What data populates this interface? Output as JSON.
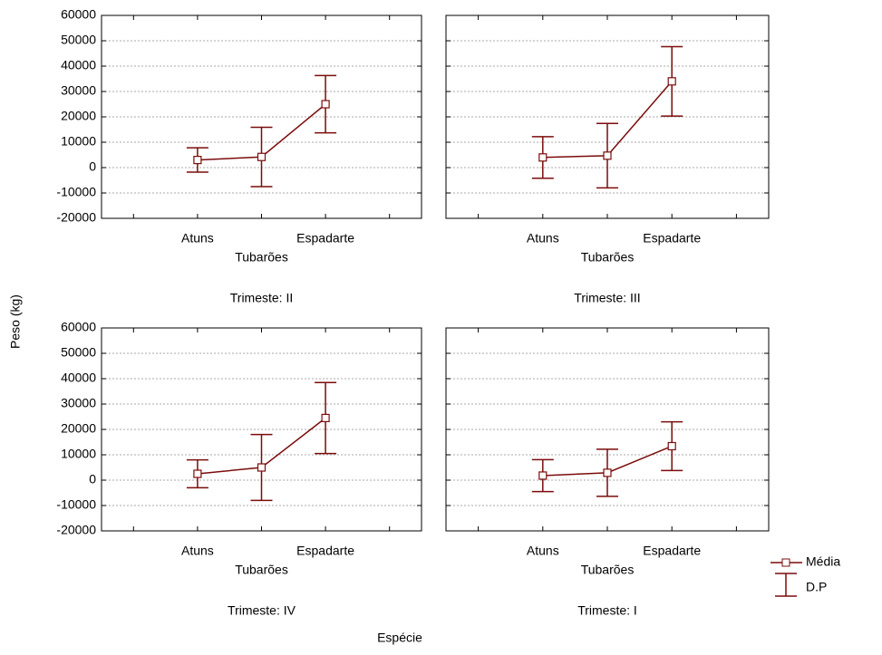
{
  "chart_data": {
    "type": "errorbar",
    "y_label": "Peso (kg)",
    "x_label": "Espécie",
    "legend": [
      "Média",
      "D.P"
    ],
    "color": "#7b0c0c",
    "ylim": [
      -20000,
      60000
    ],
    "yticks": [
      -20000,
      -10000,
      0,
      10000,
      20000,
      30000,
      40000,
      50000,
      60000
    ],
    "grid": true,
    "panels": [
      {
        "title": "Trimeste: II",
        "categories": [
          "Atuns",
          "Tubarões",
          "Espadarte"
        ],
        "values": [
          3000,
          4200,
          25000
        ],
        "errors": [
          4800,
          11700,
          11300
        ]
      },
      {
        "title": "Trimeste: III",
        "categories": [
          "Atuns",
          "Tubarões",
          "Espadarte"
        ],
        "values": [
          4000,
          4700,
          34000
        ],
        "errors": [
          8200,
          12700,
          13700
        ]
      },
      {
        "title": "Trimeste: IV",
        "categories": [
          "Atuns",
          "Tubarões",
          "Espadarte"
        ],
        "values": [
          2500,
          5000,
          24500
        ],
        "errors": [
          5500,
          13000,
          14000
        ]
      },
      {
        "title": "Trimeste: I",
        "categories": [
          "Atuns",
          "Tubarões",
          "Espadarte"
        ],
        "values": [
          1800,
          2900,
          13400
        ],
        "errors": [
          6300,
          9300,
          9600
        ]
      }
    ]
  }
}
